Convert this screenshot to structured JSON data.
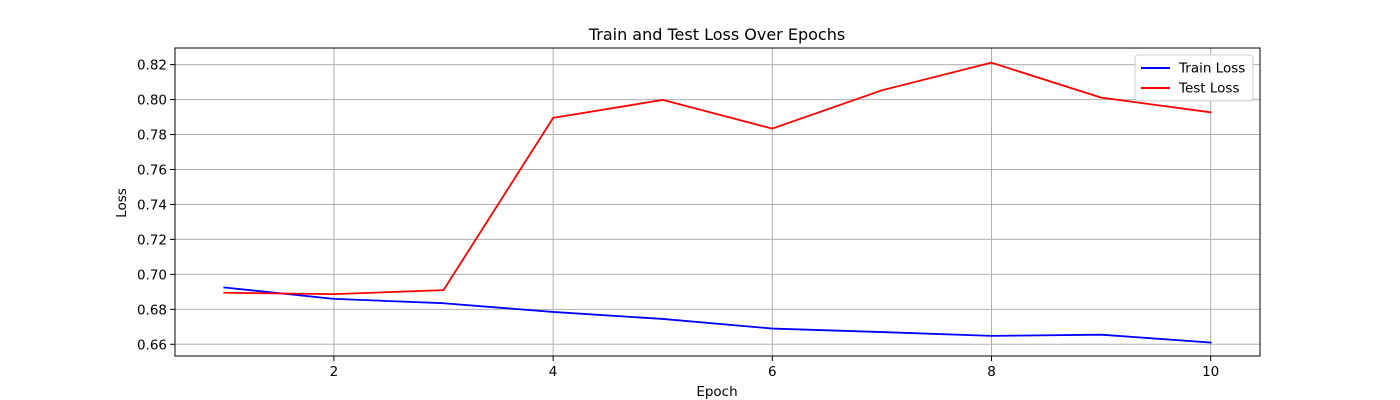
{
  "chart_data": {
    "type": "line",
    "title": "Train and Test Loss Over Epochs",
    "xlabel": "Epoch",
    "ylabel": "Loss",
    "x": [
      1,
      2,
      3,
      4,
      5,
      6,
      7,
      8,
      9,
      10
    ],
    "xlim": [
      0.55,
      10.45
    ],
    "ylim": [
      0.6533,
      0.8295
    ],
    "xticks": [
      2,
      4,
      6,
      8,
      10
    ],
    "yticks": [
      0.66,
      0.68,
      0.7,
      0.72,
      0.74,
      0.76,
      0.78,
      0.8,
      0.82
    ],
    "ytick_labels": [
      "0.66",
      "0.68",
      "0.70",
      "0.72",
      "0.74",
      "0.76",
      "0.78",
      "0.80",
      "0.82"
    ],
    "grid": true,
    "legend_position": "top-right",
    "series": [
      {
        "name": "Train Loss",
        "color": "#0000ff",
        "values": [
          0.6925,
          0.686,
          0.6835,
          0.6785,
          0.6745,
          0.669,
          0.667,
          0.6648,
          0.6655,
          0.661
        ]
      },
      {
        "name": "Test Loss",
        "color": "#ff0000",
        "values": [
          0.6895,
          0.6887,
          0.691,
          0.7895,
          0.7998,
          0.7834,
          0.8053,
          0.8211,
          0.8011,
          0.7927
        ]
      }
    ]
  }
}
